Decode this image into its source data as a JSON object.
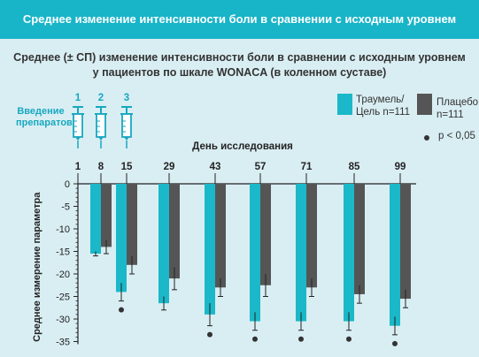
{
  "banner": {
    "title": "Среднее изменение интенсивности боли в сравнении с исходным уровнем"
  },
  "subtitle": {
    "line1": "Среднее (± СП) изменение интенсивности боли в сравнении с исходным уровнем",
    "line2": "у пациентов по шкале WONACA (в коленном суставе)"
  },
  "injections": {
    "label": "Введение препаратов",
    "numbers": [
      "1",
      "2",
      "3"
    ]
  },
  "legend": {
    "series1": "Траумель/ Цель n=111",
    "series2": "Плацебо n=111",
    "sig": "p < 0,05"
  },
  "colors": {
    "traumeel": "#1ab8c8",
    "placebo": "#555555",
    "banner": "#18b4c8",
    "background": "#d9eef3"
  },
  "chart_data": {
    "type": "bar",
    "title": "",
    "xlabel": "День исследования",
    "ylabel": "Среднее измерение параметра",
    "categories": [
      "1",
      "8",
      "15",
      "29",
      "43",
      "57",
      "71",
      "85",
      "99"
    ],
    "ylim": [
      -35,
      0
    ],
    "yticks": [
      0,
      -5,
      -10,
      -15,
      -20,
      -25,
      -30,
      -35
    ],
    "series": [
      {
        "name": "Траумель/ Цель n=111",
        "values": [
          0,
          -15.5,
          -24,
          -26.5,
          -29,
          -30.5,
          -30.5,
          -30.5,
          -31.5
        ],
        "err": [
          0,
          0.5,
          2,
          1.5,
          2.5,
          2,
          2,
          2,
          2
        ]
      },
      {
        "name": "Плацебо n=111",
        "values": [
          0,
          -14,
          -18,
          -21,
          -23,
          -22.5,
          -23,
          -24.5,
          -25.5
        ],
        "err": [
          0,
          1.5,
          2,
          2.5,
          2,
          2.5,
          2,
          2,
          2
        ]
      }
    ],
    "significant": [
      false,
      false,
      true,
      false,
      true,
      true,
      true,
      true,
      true
    ]
  }
}
